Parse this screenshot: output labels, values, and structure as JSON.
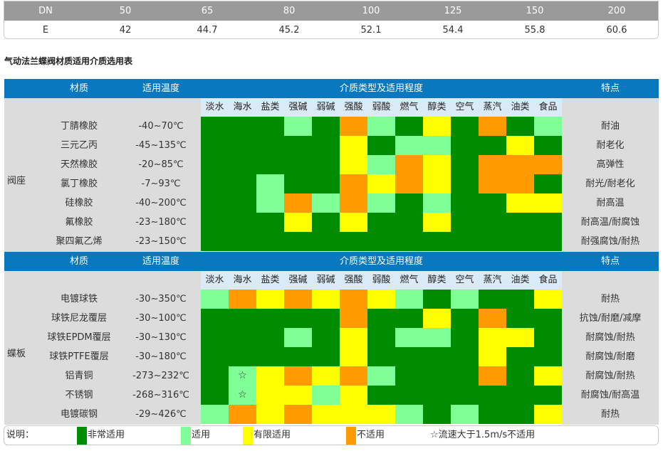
{
  "dn_table": {
    "header": [
      "DN",
      "50",
      "65",
      "80",
      "100",
      "125",
      "150",
      "200"
    ],
    "values": [
      "E",
      "42",
      "44.7",
      "45.2",
      "52.1",
      "54.4",
      "55.8",
      "60.6"
    ]
  },
  "section_title": "气动法兰蝶阀材质适用介质选用表",
  "headers": {
    "material": "材质",
    "temperature": "适用温度",
    "media_group": "介质类型及适用程度",
    "feature": "特点"
  },
  "media": [
    "淡水",
    "海水",
    "盐类",
    "强碱",
    "弱碱",
    "强酸",
    "弱酸",
    "燃气",
    "醇类",
    "空气",
    "蒸汽",
    "油类",
    "食品"
  ],
  "colors": {
    "G": "#008c00",
    "L": "#80ff96",
    "Y": "#ffff00",
    "O": "#ff9a00",
    "W": "#ffffff"
  },
  "seat": {
    "group_label": "阀座",
    "rows": [
      {
        "material": "丁腈橡胶",
        "temp": "-40~70℃",
        "feature": "耐油",
        "cells": [
          "G",
          "G",
          "G",
          "L",
          "G",
          "O",
          "L",
          "G",
          "Y",
          "G",
          "O",
          "G",
          "L"
        ]
      },
      {
        "material": "三元乙丙",
        "temp": "-45~135℃",
        "feature": "耐老化",
        "cells": [
          "G",
          "G",
          "G",
          "G",
          "G",
          "Y",
          "G",
          "L",
          "L",
          "G",
          "G",
          "Y",
          "G"
        ]
      },
      {
        "material": "天然橡胶",
        "temp": "-20~85℃",
        "feature": "高弹性",
        "cells": [
          "G",
          "G",
          "G",
          "G",
          "G",
          "Y",
          "L",
          "O",
          "Y",
          "G",
          "O",
          "O",
          "O"
        ]
      },
      {
        "material": "氯丁橡胶",
        "temp": "-7~93℃",
        "feature": "耐光/耐老化",
        "cells": [
          "G",
          "G",
          "L",
          "G",
          "G",
          "O",
          "Y",
          "O",
          "Y",
          "G",
          "O",
          "O",
          "G"
        ]
      },
      {
        "material": "硅橡胶",
        "temp": "-40~200℃",
        "feature": "耐高温",
        "cells": [
          "G",
          "G",
          "L",
          "O",
          "L",
          "O",
          "L",
          "G",
          "L",
          "G",
          "G",
          "Y",
          "Y"
        ]
      },
      {
        "material": "氟橡胶",
        "temp": "-23~180℃",
        "feature": "耐高温/耐腐蚀",
        "cells": [
          "G",
          "G",
          "G",
          "Y",
          "G",
          "Y",
          "G",
          "G",
          "Y",
          "G",
          "G",
          "G",
          "G"
        ]
      },
      {
        "material": "聚四氟乙烯",
        "temp": "-23~150℃",
        "feature": "耐强腐蚀/耐热",
        "cells": [
          "G",
          "G",
          "G",
          "G",
          "G",
          "G",
          "G",
          "G",
          "G",
          "G",
          "G",
          "G",
          "G"
        ]
      }
    ]
  },
  "disc": {
    "group_label": "蝶板",
    "rows": [
      {
        "material": "电镀球铁",
        "temp": "-30~350℃",
        "feature": "耐热",
        "cells": [
          "L",
          "O",
          "Y",
          "O",
          "Y",
          "O",
          "Y",
          "L",
          "G",
          "L",
          "G",
          "G",
          "Y"
        ],
        "marks": {}
      },
      {
        "material": "球铁尼龙覆层",
        "temp": "-30~100℃",
        "feature": "抗蚀/耐磨/减摩",
        "cells": [
          "G",
          "G",
          "G",
          "G",
          "G",
          "O",
          "G",
          "G",
          "Y",
          "G",
          "O",
          "G",
          "G"
        ],
        "marks": {}
      },
      {
        "material": "球铁EPDM覆层",
        "temp": "-30~130℃",
        "feature": "耐腐蚀/耐热",
        "cells": [
          "G",
          "G",
          "G",
          "L",
          "G",
          "Y",
          "G",
          "L",
          "L",
          "G",
          "Y",
          "Y",
          "G"
        ],
        "marks": {}
      },
      {
        "material": "球铁PTFE覆层",
        "temp": "-30~180℃",
        "feature": "耐腐蚀/耐磨",
        "cells": [
          "G",
          "G",
          "G",
          "G",
          "G",
          "Y",
          "G",
          "G",
          "G",
          "G",
          "Y",
          "G",
          "G"
        ],
        "marks": {}
      },
      {
        "material": "铝青铜",
        "temp": "-273~232℃",
        "feature": "耐腐蚀/耐热",
        "cells": [
          "G",
          "L",
          "Y",
          "O",
          "Y",
          "O",
          "L",
          "G",
          "G",
          "G",
          "O",
          "G",
          "Y"
        ],
        "marks": {
          "1": "☆"
        }
      },
      {
        "material": "不锈钢",
        "temp": "-268~316℃",
        "feature": "耐腐蚀/耐高温",
        "cells": [
          "G",
          "L",
          "Y",
          "Y",
          "L",
          "Y",
          "G",
          "G",
          "G",
          "G",
          "G",
          "G",
          "G"
        ],
        "marks": {
          "1": "☆"
        }
      },
      {
        "material": "电镀碳钢",
        "temp": "-29~426℃",
        "feature": "耐热",
        "cells": [
          "L",
          "O",
          "Y",
          "O",
          "Y",
          "Y",
          "Y",
          "L",
          "G",
          "L",
          "G",
          "G",
          "Y"
        ],
        "marks": {}
      }
    ]
  },
  "legend": {
    "title": "说明：",
    "items": [
      {
        "color": "#008c00",
        "label": "非常适用"
      },
      {
        "color": "#80ff96",
        "label": "适用"
      },
      {
        "color": "#ffff00",
        "label": "有限适用"
      },
      {
        "color": "#ff9a00",
        "label": "不适用"
      }
    ],
    "note": "☆流速大于1.5m/s不适用"
  }
}
